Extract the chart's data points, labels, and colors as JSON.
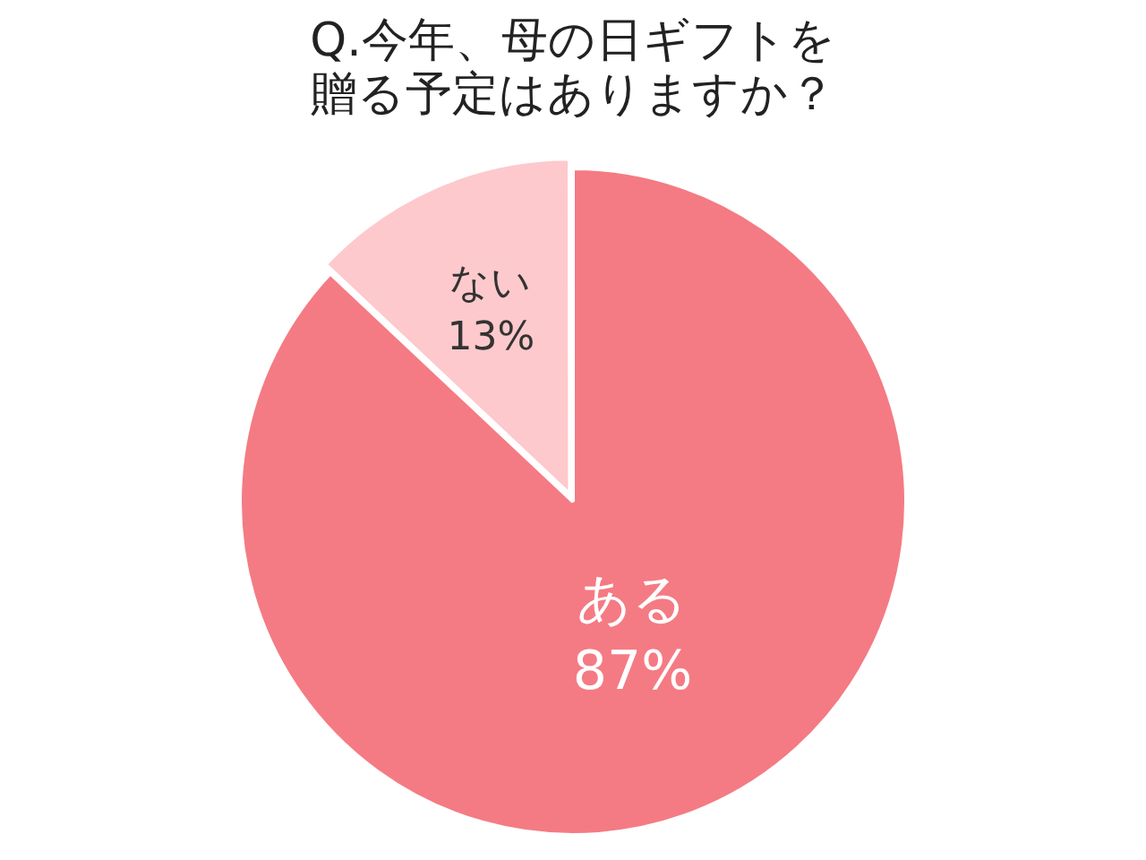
{
  "chart_data": {
    "type": "pie",
    "title": "Q.今年、母の日ギフトを贈る予定はありますか？",
    "categories": [
      "ある",
      "ない"
    ],
    "values": [
      87,
      13
    ],
    "value_labels": [
      "87%",
      "13%"
    ],
    "colors": [
      "#f47b83",
      "#fdc9cc"
    ],
    "legend": false
  }
}
